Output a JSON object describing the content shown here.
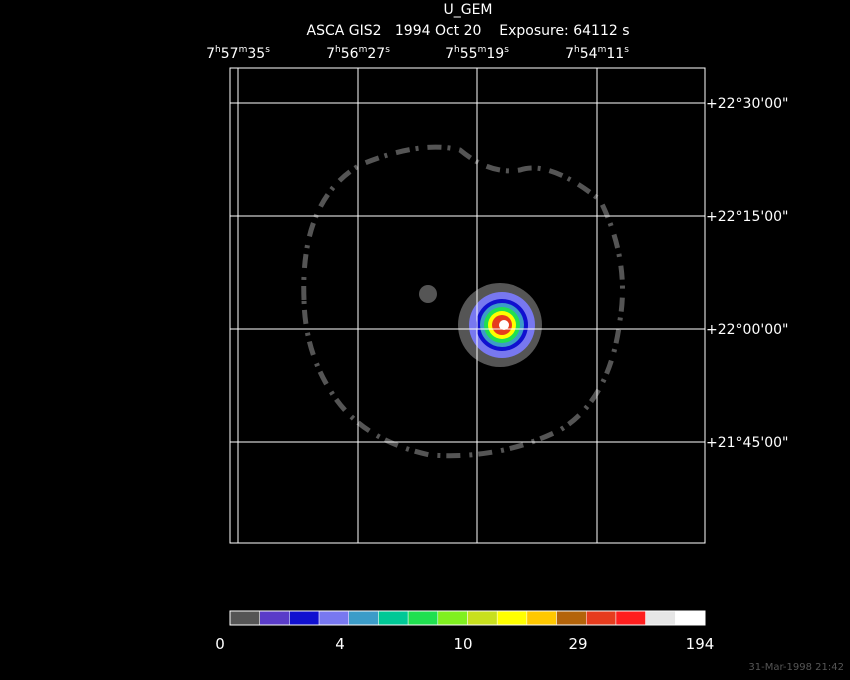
{
  "title": "U_GEM",
  "subtitle": "ASCA GIS2   1994 Oct 20    Exposure: 64112 s",
  "ra_labels": [
    [
      "7",
      "h",
      "57",
      "m",
      "35",
      "s"
    ],
    [
      "7",
      "h",
      "56",
      "m",
      "27",
      "s"
    ],
    [
      "7",
      "h",
      "55",
      "m",
      "19",
      "s"
    ],
    [
      "7",
      "h",
      "54",
      "m",
      "11",
      "s"
    ]
  ],
  "dec_labels": [
    "+22°30'00\"",
    "+22°15'00\"",
    "+22°00'00\"",
    "+21°45'00\""
  ],
  "colorbar": {
    "colors": [
      "#555555",
      "#5a3cc8",
      "#1010d0",
      "#7878f0",
      "#3c9cc8",
      "#00c896",
      "#20e050",
      "#80f020",
      "#c8e01e",
      "#ffff00",
      "#ffc800",
      "#b4640a",
      "#e63c1e",
      "#ff1e1e",
      "#e6e6e6",
      "#ffffff"
    ],
    "labels": [
      "0",
      "4",
      "10",
      "29",
      "194"
    ]
  },
  "footer": "31-Mar-1998 21:42"
}
